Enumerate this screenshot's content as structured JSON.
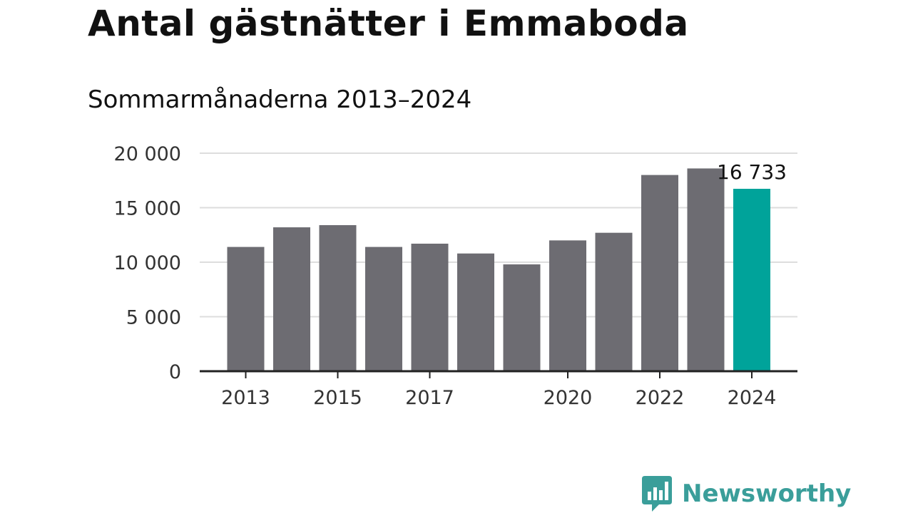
{
  "title": "Antal gästnätter i Emmaboda",
  "subtitle": "Sommarmånaderna 2013–2024",
  "brand": {
    "name": "Newsworthy",
    "icon": "newsworthy-logo-icon",
    "color": "#3a9e9a"
  },
  "colors": {
    "bar": "#6d6c72",
    "highlight": "#00a39a",
    "grid": "#dddddd",
    "axis": "#222222"
  },
  "chart_data": {
    "type": "bar",
    "title": "Antal gästnätter i Emmaboda",
    "subtitle": "Sommarmånaderna 2013–2024",
    "xlabel": "",
    "ylabel": "",
    "categories": [
      "2013",
      "2014",
      "2015",
      "2016",
      "2017",
      "2018",
      "2019",
      "2020",
      "2021",
      "2022",
      "2023",
      "2024"
    ],
    "values": [
      11400,
      13200,
      13400,
      11400,
      11700,
      10800,
      9800,
      12000,
      12700,
      18000,
      18600,
      16733
    ],
    "highlight_index": 11,
    "highlight_label": "16 733",
    "x_tick_labels": [
      "2013",
      "2015",
      "2017",
      "2020",
      "2022",
      "2024"
    ],
    "y_ticks": [
      0,
      5000,
      10000,
      15000,
      20000
    ],
    "y_tick_labels": [
      "0",
      "5 000",
      "10 000",
      "15 000",
      "20 000"
    ],
    "ylim": [
      0,
      20000
    ],
    "grid": true,
    "legend": "none"
  }
}
